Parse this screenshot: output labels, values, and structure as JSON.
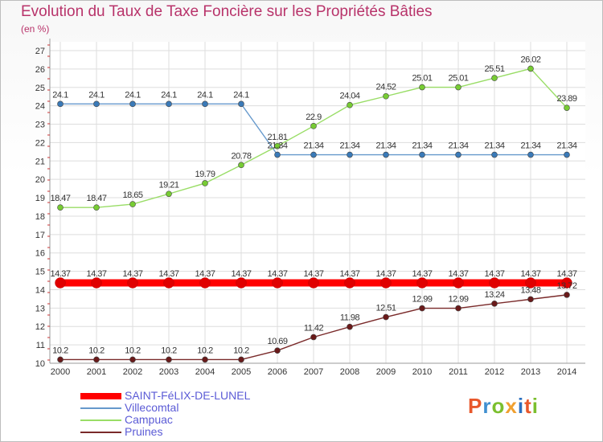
{
  "title": "Evolution du Taux de Taxe Foncière sur les Propriétés Bâties",
  "unit_label": "(en %)",
  "logo_text": "Proxiti",
  "logo_colors": [
    "#e8582c",
    "#3f8fd0",
    "#7bbf2e",
    "#f0a030",
    "#2a6fc0",
    "#e8582c",
    "#7bbf2e"
  ],
  "chart_data": {
    "type": "line",
    "title": "Evolution du Taux de Taxe Foncière sur les Propriétés Bâties",
    "ylabel": "(en %)",
    "xlabel": "",
    "ylim": [
      10,
      27
    ],
    "y_ticks": [
      10,
      11,
      12,
      13,
      14,
      15,
      16,
      17,
      18,
      19,
      20,
      21,
      22,
      23,
      24,
      25,
      26,
      27
    ],
    "grid": true,
    "legend": "bottom-left",
    "categories": [
      "2000",
      "2001",
      "2002",
      "2003",
      "2004",
      "2005",
      "2006",
      "2007",
      "2008",
      "2009",
      "2010",
      "2011",
      "2012",
      "2013",
      "2014"
    ],
    "series": [
      {
        "name": "Villecomtal",
        "color": "#6699cc",
        "marker": "#3a7ab8",
        "values": [
          24.1,
          24.1,
          24.1,
          24.1,
          24.1,
          24.1,
          21.34,
          21.34,
          21.34,
          21.34,
          21.34,
          21.34,
          21.34,
          21.34,
          21.34
        ],
        "labels": [
          "24.1",
          "24.1",
          "24.1",
          "24.1",
          "24.1",
          "24.1",
          "21.34",
          "21.34",
          "21.34",
          "21.34",
          "21.34",
          "21.34",
          "21.34",
          "21.34",
          "21.34"
        ]
      },
      {
        "name": "Campuac",
        "color": "#99dd66",
        "marker": "#77cc33",
        "values": [
          18.47,
          18.47,
          18.65,
          19.21,
          19.79,
          20.78,
          21.81,
          22.9,
          24.04,
          24.52,
          25.01,
          25.01,
          25.51,
          26.02,
          23.89
        ],
        "labels": [
          "18.47",
          "18.47",
          "18.65",
          "19.21",
          "19.79",
          "20.78",
          "21.81",
          "22.9",
          "24.04",
          "24.52",
          "25.01",
          "25.01",
          "25.51",
          "26.02",
          "23.89"
        ]
      },
      {
        "name": "SAINT-FéLIX-DE-LUNEL",
        "color": "#ff0000",
        "marker": "#e00000",
        "values": [
          14.37,
          14.37,
          14.37,
          14.37,
          14.37,
          14.37,
          14.37,
          14.37,
          14.37,
          14.37,
          14.37,
          14.37,
          14.37,
          14.37,
          14.37
        ],
        "labels": [
          "14.37",
          "14.37",
          "14.37",
          "14.37",
          "14.37",
          "14.37",
          "14.37",
          "14.37",
          "14.37",
          "14.37",
          "14.37",
          "14.37",
          "14.37",
          "14.37",
          "14.37"
        ]
      },
      {
        "name": "Pruines",
        "color": "#7a2a2a",
        "marker": "#6a1a1a",
        "values": [
          10.2,
          10.2,
          10.2,
          10.2,
          10.2,
          10.2,
          10.69,
          11.42,
          11.98,
          12.51,
          12.99,
          12.99,
          13.24,
          13.48,
          13.72
        ],
        "labels": [
          "10.2",
          "10.2",
          "10.2",
          "10.2",
          "10.2",
          "10.2",
          "10.69",
          "11.42",
          "11.98",
          "12.51",
          "12.99",
          "12.99",
          "13.24",
          "13.48",
          "13.72"
        ]
      }
    ]
  },
  "legend_items": [
    {
      "label": "SAINT-FéLIX-DE-LUNEL",
      "color": "#ff0000"
    },
    {
      "label": "Villecomtal",
      "color": "#6699cc"
    },
    {
      "label": "Campuac",
      "color": "#99dd66"
    },
    {
      "label": "Pruines",
      "color": "#7a2a2a"
    }
  ]
}
